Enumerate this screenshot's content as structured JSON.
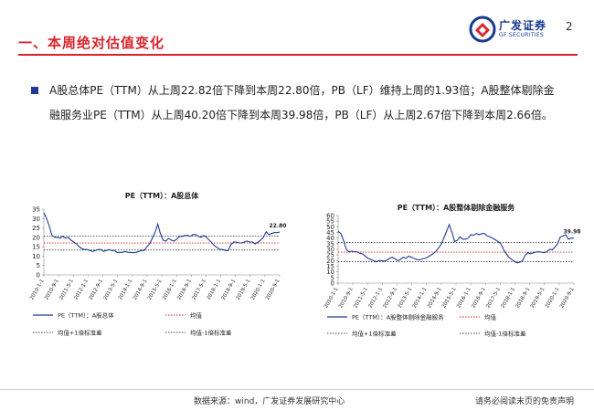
{
  "header": {
    "title": "一、本周绝对估值变化",
    "logo_cn": "广发证券",
    "logo_en": "GF SECURITIES",
    "page_number": "2",
    "accent_color": "#d8242a",
    "brand_color": "#1a3a8f"
  },
  "summary": {
    "text": "A股总体PE（TTM）从上周22.82倍下降到本周22.80倍，PB（LF）维持上周的1.93倍；A股整体剔除金融服务业PE（TTM）从上周40.20倍下降到本周39.98倍，PB（LF）从上周2.67倍下降到本周2.66倍。",
    "bullet_icon": "square-bullet-icon"
  },
  "chart_data": [
    {
      "type": "line",
      "title": "PE（TTM）：A股总体",
      "ylim": [
        0,
        35
      ],
      "yticks": [
        0,
        5,
        10,
        15,
        20,
        25,
        30,
        35
      ],
      "x_tick_labels": [
        "2010-1-1",
        "2010-9-1",
        "2011-5-1",
        "2012-1-1",
        "2012-9-1",
        "2013-5-1",
        "2014-1-1",
        "2014-9-1",
        "2015-5-1",
        "2016-1-1",
        "2016-9-1",
        "2017-5-1",
        "2018-1-1",
        "2018-9-1",
        "2019-5-1",
        "2020-1-1",
        "2020-9-1"
      ],
      "end_label": "22.80",
      "mean": 17.0,
      "plus_1sd": 20.7,
      "minus_1sd": 13.3,
      "series": [
        {
          "name": "PE（TTM）：A股总体",
          "color": "#1f3a93",
          "values": [
            33,
            30,
            26,
            21,
            20,
            20,
            19.5,
            20.5,
            19.5,
            20,
            18.5,
            17.5,
            16.5,
            15,
            14,
            13.5,
            13.5,
            13,
            12.5,
            13,
            13.5,
            13.5,
            12.5,
            13,
            13.5,
            13,
            13,
            12,
            12,
            12,
            12.5,
            12,
            12,
            11.8,
            12,
            12.5,
            13,
            13,
            15,
            16.5,
            19.5,
            22.5,
            27,
            22,
            18.5,
            18,
            19.5,
            18.5,
            18,
            19,
            20.5,
            20.5,
            21,
            21,
            20.5,
            21.5,
            21.5,
            20.5,
            20,
            21,
            20,
            18.5,
            17,
            15.5,
            14.5,
            13.5,
            13.5,
            13,
            13,
            16,
            17.5,
            17.5,
            17,
            17,
            17.5,
            18,
            17.5,
            17.5,
            16.5,
            17.5,
            18.5,
            20,
            23,
            21.5,
            22,
            22.5,
            22.5,
            22.8
          ]
        }
      ],
      "legend": [
        {
          "label": "PE（TTM）：A股总体",
          "style": "solid",
          "color": "#1f3a93"
        },
        {
          "label": "均值",
          "style": "dotted",
          "color": "#e02020"
        },
        {
          "label": "均值+1倍标准差",
          "style": "dotted",
          "color": "#444444"
        },
        {
          "label": "均值-1倍标准差",
          "style": "dotted",
          "color": "#444444"
        }
      ]
    },
    {
      "type": "line",
      "title": "PE（TTM）：A股整体剔除金融服务",
      "ylim": [
        0,
        60
      ],
      "yticks": [
        0,
        5,
        10,
        15,
        20,
        25,
        30,
        35,
        40,
        45,
        50,
        55,
        60
      ],
      "x_tick_labels": [
        "2010-1-1",
        "2010-9-1",
        "2011-5-1",
        "2012-1-1",
        "2012-9-1",
        "2013-5-1",
        "2014-1-1",
        "2014-9-1",
        "2015-5-1",
        "2016-1-1",
        "2016-9-1",
        "2017-5-1",
        "2018-1-1",
        "2018-9-1",
        "2019-5-1",
        "2020-1-1",
        "2020-9-1"
      ],
      "end_label": "39.98",
      "mean": 27.5,
      "plus_1sd": 36.0,
      "minus_1sd": 19.0,
      "series": [
        {
          "name": "PE（TTM）：A股整体剔除金融服务",
          "color": "#1f3a93",
          "values": [
            46,
            44,
            38,
            30,
            28,
            28.5,
            28,
            28,
            26.5,
            26,
            24,
            22,
            21,
            20,
            19,
            20,
            20,
            19.5,
            20.5,
            22,
            23,
            21.5,
            20,
            21,
            23,
            22,
            24,
            23,
            22,
            21,
            20.5,
            21.5,
            22,
            23,
            24.5,
            26,
            28,
            31,
            34.5,
            40,
            46,
            52,
            45,
            37,
            38,
            41,
            39,
            39,
            40,
            43,
            42.5,
            44,
            43,
            44,
            44,
            42,
            41,
            40,
            38.5,
            37,
            35,
            30,
            26,
            23,
            21,
            19.5,
            18,
            18.5,
            20,
            24.5,
            27,
            26,
            27,
            27.5,
            28,
            27.5,
            27,
            28,
            30,
            29.5,
            32,
            35,
            41,
            42,
            43,
            39,
            40,
            39.98
          ]
        }
      ],
      "legend": [
        {
          "label": "PE（TTM）：A股整体剔除金融服务",
          "style": "solid",
          "color": "#1f3a93"
        },
        {
          "label": "均值",
          "style": "dotted",
          "color": "#e02020"
        },
        {
          "label": "均值+1倍标准差",
          "style": "dotted",
          "color": "#444444"
        },
        {
          "label": "均值-1倍标准差",
          "style": "dotted",
          "color": "#444444"
        }
      ]
    }
  ],
  "footer": {
    "source": "数据来源：wind，广发证券发展研究中心",
    "disclaimer": "请务必阅读末页的免责声明"
  }
}
